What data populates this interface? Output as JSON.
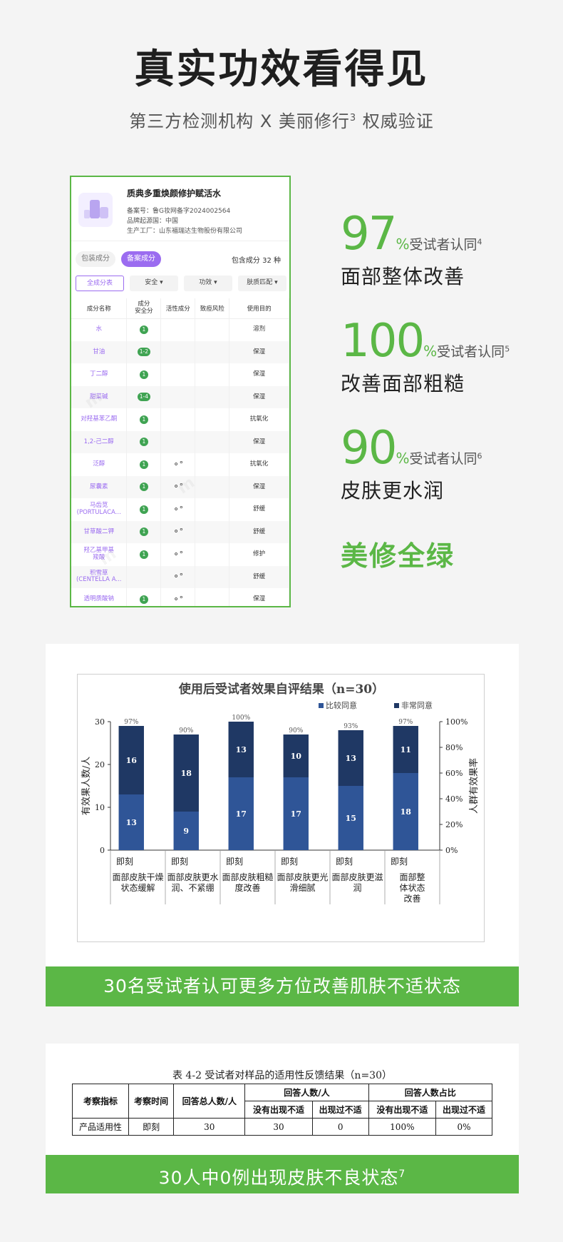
{
  "hero": {
    "title": "真实功效看得见",
    "subtitle": "第三方检测机构 X 美丽修行",
    "subtitle_sup": "3",
    "subtitle_tail": " 权威验证"
  },
  "card": {
    "product_name": "质典多重焕颜修护赋活水",
    "record_no": "备案号：鲁G妆网备字2024002564",
    "origin": "品牌起源国：中国",
    "factory": "生产工厂：山东福瑞达生物股份有限公司",
    "tab_off": "包装成分",
    "tab_on": "备案成分",
    "count": "包含成分 32 种",
    "filters": [
      "全成分表",
      "安全 ▾",
      "功效 ▾",
      "肤质匹配 ▾"
    ],
    "headers": [
      "成分名称",
      "成分\n安全分",
      "活性成分",
      "致痘风险",
      "使用目的"
    ],
    "rows": [
      {
        "name": "水",
        "score": "1",
        "active": "",
        "purpose": "溶剂"
      },
      {
        "name": "甘油",
        "score": "1-2",
        "active": "",
        "purpose": "保湿"
      },
      {
        "name": "丁二醇",
        "score": "1",
        "active": "",
        "purpose": "保湿"
      },
      {
        "name": "甜菜碱",
        "score": "1-4",
        "active": "",
        "purpose": "保湿"
      },
      {
        "name": "对羟基苯乙酮",
        "score": "1",
        "active": "",
        "purpose": "抗氧化"
      },
      {
        "name": "1,2-己二醇",
        "score": "1",
        "active": "",
        "purpose": "保湿"
      },
      {
        "name": "泛醇",
        "score": "1",
        "active": "⚬°",
        "purpose": "抗氧化"
      },
      {
        "name": "尿囊素",
        "score": "1",
        "active": "⚬°",
        "purpose": "保湿"
      },
      {
        "name": "马齿苋\n(PORTULACA...",
        "score": "1",
        "active": "⚬°",
        "purpose": "舒缓"
      },
      {
        "name": "甘草酸二钾",
        "score": "1",
        "active": "⚬°",
        "purpose": "舒缓"
      },
      {
        "name": "羟乙基甲基\n羧酸",
        "score": "1",
        "active": "⚬°",
        "purpose": "修护"
      },
      {
        "name": "积雪草\n(CENTELLA A...",
        "score": "",
        "active": "⚬°",
        "purpose": "舒缓"
      },
      {
        "name": "透明质酸钠",
        "score": "1",
        "active": "⚬°",
        "purpose": "保湿"
      }
    ]
  },
  "stats": [
    {
      "value": "97",
      "pct": "%",
      "label": "受试者认同",
      "sup": "4",
      "desc": "面部整体改善"
    },
    {
      "value": "100",
      "pct": "%",
      "label": "受试者认同",
      "sup": "5",
      "desc": "改善面部粗糙"
    },
    {
      "value": "90",
      "pct": "%",
      "label": "受试者认同",
      "sup": "6",
      "desc": "皮肤更水润"
    }
  ],
  "stat_green": "美修全绿",
  "chart_data": {
    "type": "bar",
    "stacked": true,
    "title": "使用后受试者效果自评结果（n=30）",
    "ylabel": "有效果人数/人",
    "y2label": "人群有效果率",
    "ylim": [
      0,
      30
    ],
    "yticks": [
      "0",
      "10",
      "20",
      "30"
    ],
    "y2ticks": [
      "0%",
      "20%",
      "40%",
      "60%",
      "80%",
      "100%"
    ],
    "legend_position": "top-right",
    "time_label": "即刻",
    "categories": [
      "面部皮肤干燥状态缓解",
      "面部皮肤更水润、不紧绷",
      "面部皮肤粗糙度改善",
      "面部皮肤更光滑细腻",
      "面部皮肤更滋润",
      "面部整体状态改善"
    ],
    "category_lines": [
      [
        "面部皮肤干燥",
        "状态缓解"
      ],
      [
        "面部皮肤更水",
        "润、不紧绷"
      ],
      [
        "面部皮肤粗糙",
        "度改善"
      ],
      [
        "面部皮肤更光",
        "滑细腻"
      ],
      [
        "面部皮肤更滋",
        "润"
      ],
      [
        "面部整",
        "体状态",
        "改善"
      ]
    ],
    "series": [
      {
        "name": "比较同意",
        "color": "#2f5597",
        "values": [
          13,
          9,
          17,
          17,
          15,
          18
        ]
      },
      {
        "name": "非常同意",
        "color": "#1f3864",
        "values": [
          16,
          18,
          13,
          10,
          13,
          11
        ]
      }
    ],
    "rates": [
      "97%",
      "90%",
      "100%",
      "90%",
      "93%",
      "97%"
    ]
  },
  "banner1": "30名受试者认可更多方位改善肌肤不适状态",
  "table42": {
    "title": "表 4-2  受试者对样品的适用性反馈结果（n=30）",
    "h_index": "考察指标",
    "h_time": "考察时间",
    "h_total": "回答总人数/人",
    "h_count": "回答人数/人",
    "h_ratio": "回答人数占比",
    "h_none": "没有出现不适",
    "h_had": "出现过不适",
    "row": [
      "产品适用性",
      "即刻",
      "30",
      "30",
      "0",
      "100%",
      "0%"
    ]
  },
  "banner2": "30人中0例出现皮肤不良状态",
  "banner2_sup": "7"
}
